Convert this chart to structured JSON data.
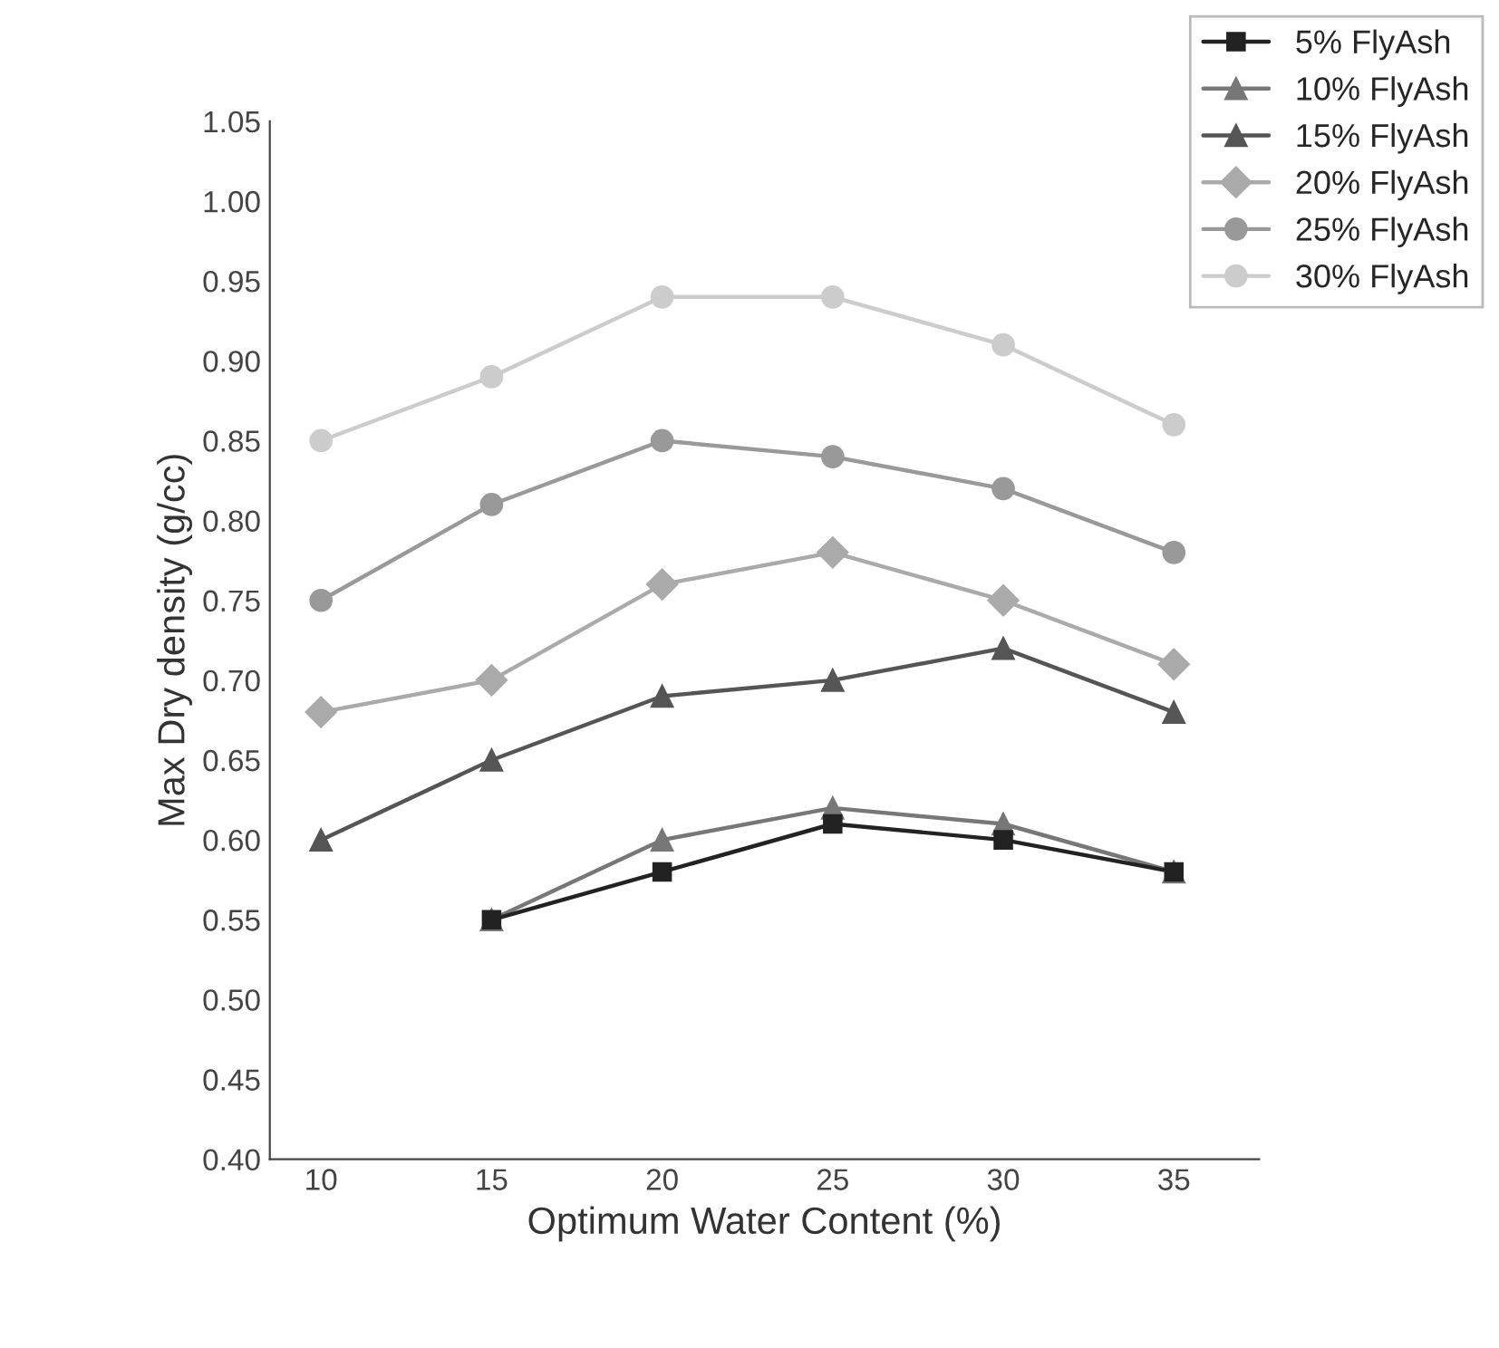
{
  "chart_data": {
    "type": "line",
    "xlabel": "Optimum Water Content (%)",
    "ylabel": "Max Dry density (g/cc)",
    "xlim": [
      8.5,
      37.5
    ],
    "xticks": [
      10,
      15,
      20,
      25,
      30,
      35
    ],
    "ylim": [
      0.4,
      1.05
    ],
    "yticks": [
      {
        "value": 0.4,
        "label": "0.40"
      },
      {
        "value": 0.45,
        "label": "0.45"
      },
      {
        "value": 0.5,
        "label": "0.50"
      },
      {
        "value": 0.55,
        "label": "0.55"
      },
      {
        "value": 0.6,
        "label": "0.60"
      },
      {
        "value": 0.65,
        "label": "0.65"
      },
      {
        "value": 0.7,
        "label": "0.70"
      },
      {
        "value": 0.75,
        "label": "0.75"
      },
      {
        "value": 0.8,
        "label": "0.80"
      },
      {
        "value": 0.85,
        "label": "0.85"
      },
      {
        "value": 0.9,
        "label": "0.90"
      },
      {
        "value": 0.95,
        "label": "0.95"
      },
      {
        "value": 1.0,
        "label": "1.00"
      },
      {
        "value": 1.05,
        "label": "1.05"
      }
    ],
    "grid": false,
    "legend": "top right",
    "line_style": "solid",
    "series": [
      {
        "name": "5% FlyAsh",
        "color": "#222222",
        "marker": "square",
        "x": [
          15,
          20,
          25,
          30,
          35
        ],
        "values": [
          0.55,
          0.58,
          0.61,
          0.6,
          0.58
        ]
      },
      {
        "name": "10% FlyAsh",
        "color": "#777777",
        "marker": "triangle",
        "x": [
          15,
          20,
          25,
          30,
          35
        ],
        "values": [
          0.55,
          0.6,
          0.62,
          0.61,
          0.58
        ]
      },
      {
        "name": "15% FlyAsh",
        "color": "#555555",
        "marker": "triangle",
        "x": [
          10,
          15,
          20,
          25,
          30,
          35
        ],
        "values": [
          0.6,
          0.65,
          0.69,
          0.7,
          0.72,
          0.68
        ]
      },
      {
        "name": "20% FlyAsh",
        "color": "#aaaaaa",
        "marker": "diamond",
        "x": [
          10,
          15,
          20,
          25,
          30,
          35
        ],
        "values": [
          0.68,
          0.7,
          0.76,
          0.78,
          0.75,
          0.71
        ]
      },
      {
        "name": "25% FlyAsh",
        "color": "#999999",
        "marker": "circle",
        "x": [
          10,
          15,
          20,
          25,
          30,
          35
        ],
        "values": [
          0.75,
          0.81,
          0.85,
          0.84,
          0.82,
          0.78
        ]
      },
      {
        "name": "30% FlyAsh",
        "color": "#cccccc",
        "marker": "circle",
        "x": [
          10,
          15,
          20,
          25,
          30,
          35
        ],
        "values": [
          0.85,
          0.89,
          0.94,
          0.94,
          0.91,
          0.86
        ]
      }
    ]
  }
}
